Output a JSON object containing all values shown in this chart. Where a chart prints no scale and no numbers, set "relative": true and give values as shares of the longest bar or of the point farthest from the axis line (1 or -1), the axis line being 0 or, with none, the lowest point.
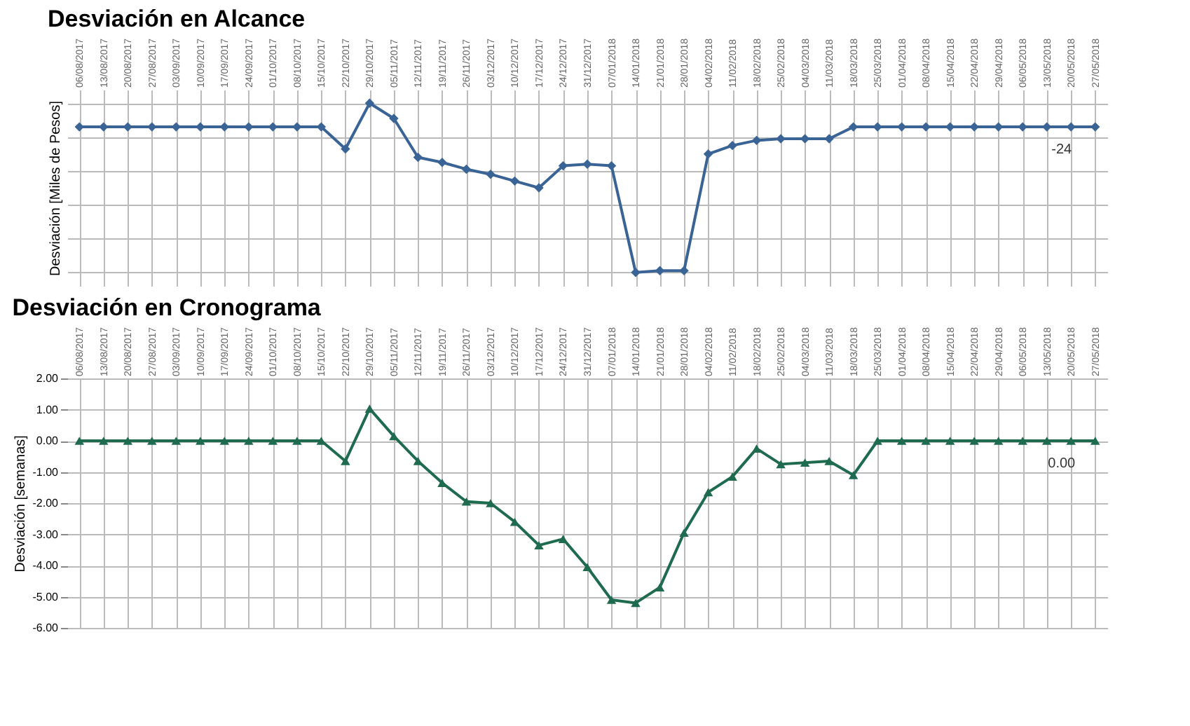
{
  "chart_data": [
    {
      "type": "line",
      "title": "Desviación en Alcance",
      "ylabel": "Desviación [Miles de Pesos]",
      "relative": true,
      "grid": true,
      "marker": "diamond",
      "tick_labels": "x",
      "categories": [
        "06/08/2017",
        "13/08/2017",
        "20/08/2017",
        "27/08/2017",
        "03/09/2017",
        "10/09/2017",
        "17/09/2017",
        "24/09/2017",
        "01/10/2017",
        "08/10/2017",
        "15/10/2017",
        "22/10/2017",
        "29/10/2017",
        "05/11/2017",
        "12/11/2017",
        "19/11/2017",
        "26/11/2017",
        "03/12/2017",
        "10/12/2017",
        "17/12/2017",
        "24/12/2017",
        "31/12/2017",
        "07/01/2018",
        "14/01/2018",
        "21/01/2018",
        "28/01/2018",
        "04/02/2018",
        "11/02/2018",
        "18/02/2018",
        "25/02/2018",
        "04/03/2018",
        "11/03/2018",
        "18/03/2018",
        "25/03/2018",
        "01/04/2018",
        "08/04/2018",
        "15/04/2018",
        "22/04/2018",
        "29/04/2018",
        "06/05/2018",
        "13/05/2018",
        "20/05/2018",
        "27/05/2018"
      ],
      "annotations": [
        {
          "text": "-24",
          "x": "27/05/2018",
          "y": 0.86
        }
      ],
      "series": [
        {
          "color": "#3a6496",
          "values": [
            0.86,
            0.86,
            0.86,
            0.86,
            0.86,
            0.86,
            0.86,
            0.86,
            0.86,
            0.86,
            0.86,
            0.73,
            1,
            0.91,
            0.68,
            0.65,
            0.61,
            0.58,
            0.54,
            0.5,
            0.63,
            0.64,
            0.63,
            0,
            0.01,
            0.01,
            0.7,
            0.75,
            0.78,
            0.79,
            0.79,
            0.79,
            0.86,
            0.86,
            0.86,
            0.86,
            0.86,
            0.86,
            0.86,
            0.86,
            0.86,
            0.86,
            0.86
          ]
        }
      ]
    },
    {
      "type": "line",
      "title": "Desviación en Cronograma",
      "ylabel": "Desviación [semanas]",
      "grid": true,
      "marker": "triangle",
      "ylim": [
        -6,
        2
      ],
      "yticks": [
        {
          "value": 2,
          "label": "2.00"
        },
        {
          "value": 1,
          "label": "1.00"
        },
        {
          "value": 0,
          "label": "0.00"
        },
        {
          "value": -1,
          "label": "-1.00"
        },
        {
          "value": -2,
          "label": "-2.00"
        },
        {
          "value": -3,
          "label": "-3.00"
        },
        {
          "value": -4,
          "label": "-4.00"
        },
        {
          "value": -5,
          "label": "-5.00"
        },
        {
          "value": -6,
          "label": "-6.00"
        }
      ],
      "categories": [
        "06/08/2017",
        "13/08/2017",
        "20/08/2017",
        "27/08/2017",
        "03/09/2017",
        "10/09/2017",
        "17/09/2017",
        "24/09/2017",
        "01/10/2017",
        "08/10/2017",
        "15/10/2017",
        "22/10/2017",
        "29/10/2017",
        "05/11/2017",
        "12/11/2017",
        "19/11/2017",
        "26/11/2017",
        "03/12/2017",
        "10/12/2017",
        "17/12/2017",
        "24/12/2017",
        "31/12/2017",
        "07/01/2018",
        "14/01/2018",
        "21/01/2018",
        "28/01/2018",
        "04/02/2018",
        "11/02/2018",
        "18/02/2018",
        "25/02/2018",
        "04/03/2018",
        "11/03/2018",
        "18/03/2018",
        "25/03/2018",
        "01/04/2018",
        "08/04/2018",
        "15/04/2018",
        "22/04/2018",
        "29/04/2018",
        "06/05/2018",
        "13/05/2018",
        "20/05/2018",
        "27/05/2018"
      ],
      "series": [
        {
          "color": "#1f6b4f",
          "values": [
            0,
            0,
            0,
            0,
            0,
            0,
            0,
            0,
            0,
            0,
            0,
            -0.65,
            1.03,
            0.15,
            -0.65,
            -1.35,
            -1.95,
            -2.0,
            -2.6,
            -3.35,
            -3.15,
            -4.05,
            -5.1,
            -5.2,
            -4.7,
            -2.95,
            -1.65,
            -1.15,
            -0.25,
            -0.75,
            -0.7,
            -0.65,
            -1.1,
            0,
            0,
            0,
            0,
            0,
            0,
            0,
            0,
            0,
            0
          ],
          "value_labels": [
            null,
            null,
            null,
            null,
            null,
            null,
            null,
            null,
            null,
            null,
            null,
            null,
            null,
            null,
            null,
            null,
            null,
            null,
            null,
            null,
            null,
            null,
            null,
            null,
            null,
            null,
            null,
            null,
            null,
            null,
            null,
            null,
            null,
            null,
            null,
            null,
            null,
            null,
            null,
            null,
            null,
            null,
            "0.00"
          ]
        }
      ]
    }
  ]
}
